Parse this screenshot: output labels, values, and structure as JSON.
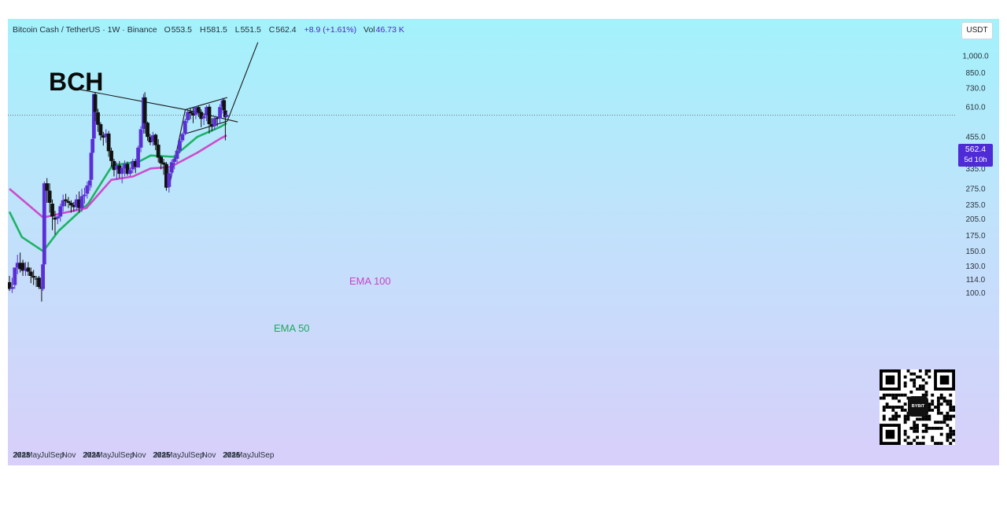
{
  "header": {
    "symbol": "Bitcoin Cash / TetherUS · 1W · Binance",
    "open_label": "O",
    "open": "553.5",
    "high_label": "H",
    "high": "581.5",
    "low_label": "L",
    "low": "551.5",
    "close_label": "C",
    "close": "562.4",
    "change": "+8.9 (+1.61%)",
    "volume_label": "Vol",
    "volume": "46.73 K"
  },
  "currency": "USDT",
  "price_tag": {
    "price": "562.4",
    "countdown": "5d 10h"
  },
  "qr_logo_text": "BYBIT",
  "colors": {
    "bull": "#5b2fd6",
    "bear": "#111111",
    "ema50": "#1db365",
    "ema100": "#cc4ccc",
    "trendline": "#1a1a1a",
    "price_line": "#555555"
  },
  "chart_data": {
    "type": "candlestick",
    "title": "BCH",
    "y_scale": "log",
    "ylim": [
      85,
      1200
    ],
    "y_ticks": [
      "1,000.0",
      "850.0",
      "730.0",
      "610.0",
      "455.0",
      "395.0",
      "335.0",
      "275.0",
      "235.0",
      "205.0",
      "175.0",
      "150.0",
      "130.0",
      "114.0",
      "100.0"
    ],
    "y_tick_values": [
      1000,
      850,
      730,
      610,
      455,
      395,
      335,
      275,
      235,
      205,
      175,
      150,
      130,
      114,
      100
    ],
    "x_ticks": [
      "2023",
      "Mar",
      "May",
      "Jul",
      "Sep",
      "Nov",
      "2024",
      "Mar",
      "May",
      "Jul",
      "Sep",
      "Nov",
      "2025",
      "Mar",
      "May",
      "Jul",
      "Sep",
      "Nov",
      "2026",
      "Mar",
      "May",
      "Jul",
      "Sep"
    ],
    "x_tick_dates": [
      "2023-01-01",
      "2023-03-01",
      "2023-05-01",
      "2023-07-01",
      "2023-09-01",
      "2023-11-01",
      "2024-01-01",
      "2024-03-01",
      "2024-05-01",
      "2024-07-01",
      "2024-09-01",
      "2024-11-01",
      "2025-01-01",
      "2025-03-01",
      "2025-05-01",
      "2025-07-01",
      "2025-09-01",
      "2025-11-01",
      "2026-01-01",
      "2026-03-01",
      "2026-05-01",
      "2026-07-01",
      "2026-09-01"
    ],
    "current_price": 562.4,
    "annotations": [
      "EMA 100",
      "EMA 50"
    ],
    "series": [
      {
        "name": "EMA 50",
        "dates": [
          "2022-12-26",
          "2023-03-01",
          "2023-06-20",
          "2023-09-10",
          "2024-02-10",
          "2024-06-15",
          "2024-11-01",
          "2025-01-01",
          "2025-05-01",
          "2025-09-01",
          "2026-01-01",
          "2026-02-02"
        ],
        "values": [
          220,
          172,
          150,
          183,
          238,
          345,
          358,
          380,
          375,
          455,
          502,
          520
        ]
      },
      {
        "name": "EMA 100",
        "dates": [
          "2022-12-26",
          "2023-06-20",
          "2023-10-10",
          "2024-02-01",
          "2024-06-10",
          "2024-10-01",
          "2025-01-01",
          "2025-04-15",
          "2025-09-01",
          "2026-01-01",
          "2026-02-02"
        ],
        "values": [
          275,
          208,
          218,
          228,
          300,
          310,
          335,
          340,
          390,
          448,
          462
        ]
      }
    ],
    "trendlines": [
      {
        "from": [
          "2024-01-01",
          720
        ],
        "to": [
          "2025-07-01",
          593
        ]
      },
      {
        "from": [
          "2025-07-01",
          593
        ],
        "to": [
          "2026-04-01",
          526
        ]
      },
      {
        "from": [
          "2025-07-01",
          593
        ],
        "to": [
          "2026-02-05",
          667
        ]
      },
      {
        "from": [
          "2025-07-01",
          469
        ],
        "to": [
          "2026-02-05",
          530
        ]
      },
      {
        "from": [
          "2025-04-07",
          278
        ],
        "to": [
          "2025-07-01",
          593
        ]
      },
      {
        "from": [
          "2026-02-05",
          530
        ],
        "to": [
          "2026-07-15",
          1140
        ]
      }
    ],
    "candles": {
      "dates": [
        "2022-12-26",
        "2023-01-09",
        "2023-01-23",
        "2023-02-06",
        "2023-02-20",
        "2023-03-06",
        "2023-03-20",
        "2023-04-03",
        "2023-04-17",
        "2023-05-01",
        "2023-05-15",
        "2023-05-29",
        "2023-06-12",
        "2023-06-19",
        "2023-06-26",
        "2023-07-10",
        "2023-07-24",
        "2023-08-07",
        "2023-08-21",
        "2023-09-04",
        "2023-09-18",
        "2023-10-02",
        "2023-10-16",
        "2023-10-30",
        "2023-11-13",
        "2023-11-27",
        "2023-12-11",
        "2023-12-25",
        "2024-01-08",
        "2024-01-22",
        "2024-02-05",
        "2024-02-19",
        "2024-02-26",
        "2024-03-04",
        "2024-03-11",
        "2024-03-18",
        "2024-04-01",
        "2024-04-15",
        "2024-04-29",
        "2024-05-13",
        "2024-05-27",
        "2024-06-10",
        "2024-06-24",
        "2024-07-08",
        "2024-07-22",
        "2024-08-05",
        "2024-08-19",
        "2024-09-02",
        "2024-09-16",
        "2024-09-30",
        "2024-10-14",
        "2024-10-28",
        "2024-11-11",
        "2024-11-25",
        "2024-12-02",
        "2024-12-16",
        "2024-12-30",
        "2025-01-13",
        "2025-01-27",
        "2025-02-10",
        "2025-02-24",
        "2025-03-10",
        "2025-03-24",
        "2025-04-07",
        "2025-04-21",
        "2025-05-05",
        "2025-05-19",
        "2025-06-02",
        "2025-06-16",
        "2025-06-30",
        "2025-07-14",
        "2025-07-28",
        "2025-08-11",
        "2025-08-25",
        "2025-09-08",
        "2025-09-22",
        "2025-10-06",
        "2025-10-20",
        "2025-11-03",
        "2025-11-17",
        "2025-12-01",
        "2025-12-15",
        "2025-12-29",
        "2026-01-12",
        "2026-01-19",
        "2026-01-26",
        "2026-02-02"
      ],
      "open": [
        111,
        104,
        108,
        128,
        134,
        134,
        124,
        128,
        123,
        118,
        115,
        116,
        106,
        104,
        132,
        290,
        270,
        238,
        208,
        206,
        210,
        232,
        248,
        244,
        240,
        235,
        230,
        248,
        228,
        256,
        262,
        284,
        300,
        390,
        448,
        688,
        578,
        515,
        462,
        455,
        470,
        398,
        360,
        332,
        345,
        318,
        335,
        350,
        318,
        332,
        360,
        338,
        410,
        492,
        668,
        522,
        455,
        435,
        465,
        422,
        375,
        355,
        350,
        280,
        322,
        357,
        368,
        398,
        440,
        470,
        535,
        582,
        575,
        565,
        608,
        580,
        545,
        560,
        610,
        515,
        505,
        548,
        545,
        610,
        650,
        588,
        553.5
      ],
      "high": [
        118,
        116,
        126,
        145,
        148,
        138,
        135,
        135,
        128,
        125,
        118,
        118,
        110,
        134,
        295,
        305,
        290,
        248,
        222,
        212,
        238,
        260,
        262,
        254,
        246,
        242,
        260,
        268,
        275,
        278,
        295,
        315,
        395,
        455,
        692,
        702,
        598,
        525,
        478,
        490,
        482,
        410,
        368,
        355,
        360,
        345,
        362,
        358,
        338,
        368,
        368,
        418,
        505,
        690,
        702,
        528,
        468,
        478,
        470,
        445,
        380,
        368,
        357,
        335,
        365,
        378,
        400,
        448,
        475,
        542,
        588,
        605,
        608,
        612,
        618,
        595,
        568,
        618,
        625,
        545,
        558,
        555,
        625,
        665,
        660,
        598,
        581.5
      ],
      "low": [
        102,
        100,
        104,
        120,
        122,
        118,
        118,
        118,
        110,
        108,
        106,
        104,
        92,
        102,
        128,
        240,
        218,
        184,
        176,
        195,
        200,
        220,
        232,
        228,
        218,
        220,
        222,
        218,
        220,
        238,
        250,
        270,
        278,
        380,
        430,
        530,
        478,
        440,
        418,
        430,
        375,
        340,
        310,
        300,
        305,
        290,
        310,
        312,
        310,
        320,
        320,
        338,
        392,
        470,
        470,
        438,
        420,
        418,
        400,
        355,
        332,
        315,
        270,
        265,
        310,
        332,
        355,
        388,
        432,
        462,
        522,
        540,
        520,
        540,
        552,
        500,
        510,
        530,
        470,
        480,
        485,
        505,
        520,
        570,
        555,
        440,
        551.5
      ],
      "close": [
        104,
        106,
        128,
        134,
        126,
        124,
        126,
        123,
        118,
        116,
        114,
        106,
        104,
        132,
        290,
        270,
        240,
        210,
        204,
        210,
        232,
        246,
        244,
        240,
        234,
        230,
        248,
        228,
        256,
        260,
        284,
        298,
        390,
        446,
        690,
        580,
        512,
        462,
        452,
        470,
        396,
        360,
        330,
        344,
        318,
        336,
        350,
        318,
        330,
        360,
        340,
        410,
        490,
        668,
        520,
        455,
        432,
        462,
        420,
        372,
        352,
        348,
        278,
        320,
        356,
        368,
        398,
        438,
        468,
        532,
        580,
        572,
        560,
        606,
        578,
        542,
        558,
        608,
        515,
        502,
        546,
        542,
        608,
        648,
        590,
        550,
        562.4
      ]
    }
  }
}
